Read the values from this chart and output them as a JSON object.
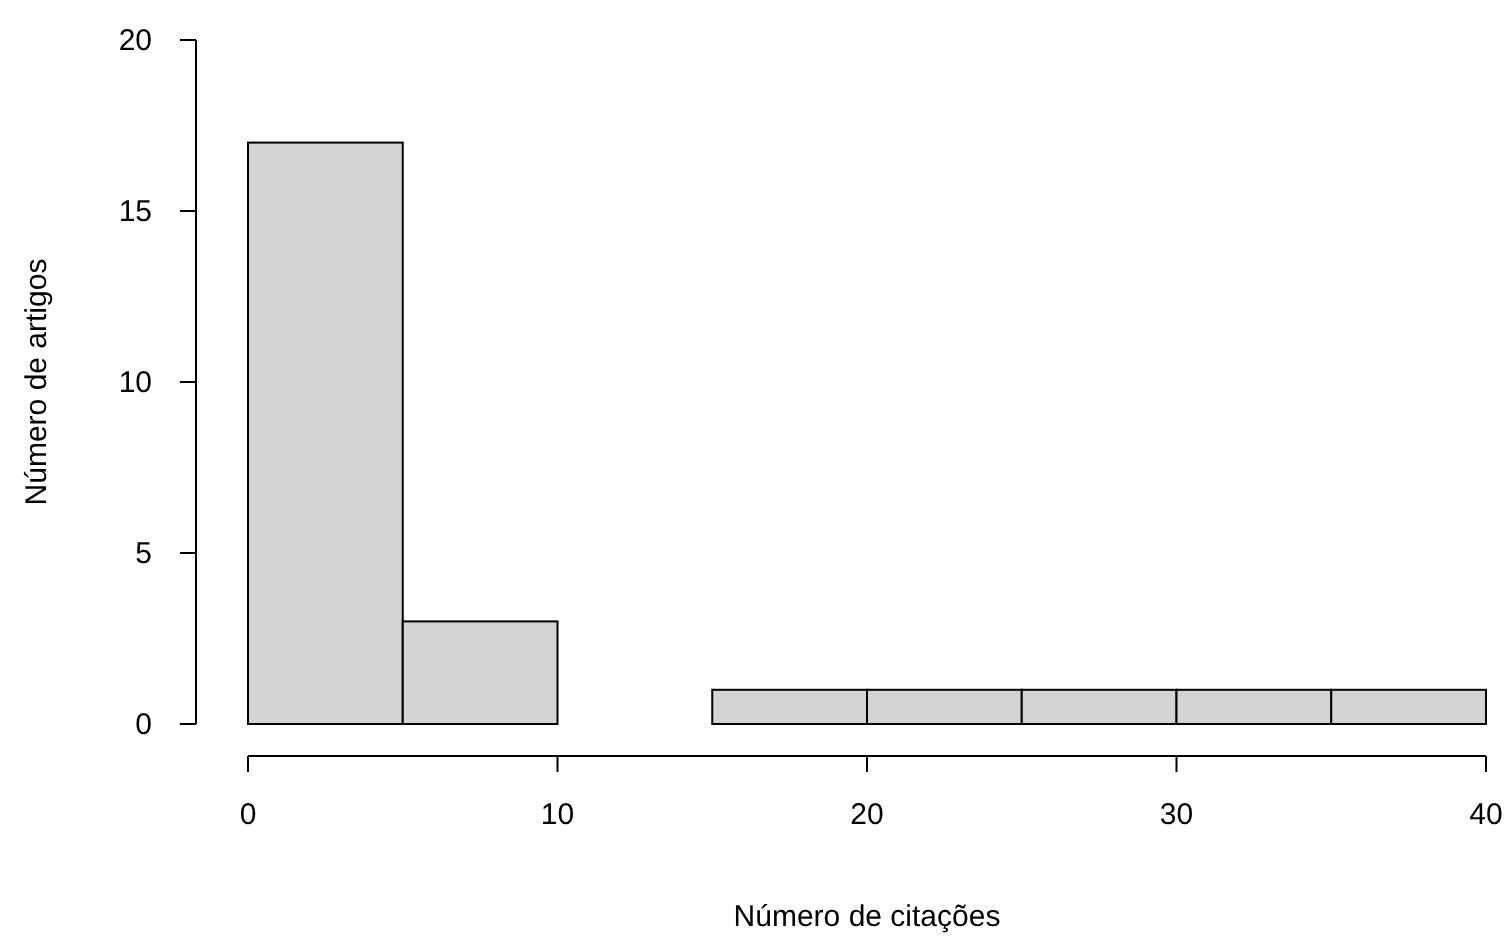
{
  "chart_data": {
    "type": "histogram",
    "xlabel": "Número de citações",
    "ylabel": "Número de artigos",
    "bins": [
      0,
      5,
      10,
      15,
      20,
      25,
      30,
      35,
      40
    ],
    "values": [
      17,
      3,
      0,
      1,
      1,
      1,
      1,
      1
    ],
    "color": "#d3d3d3",
    "xlim": [
      0,
      40
    ],
    "xticks": [
      0,
      10,
      20,
      30,
      40
    ],
    "ylim": [
      0,
      20
    ],
    "yticks": [
      0,
      5,
      10,
      15,
      20
    ],
    "grid": false
  }
}
